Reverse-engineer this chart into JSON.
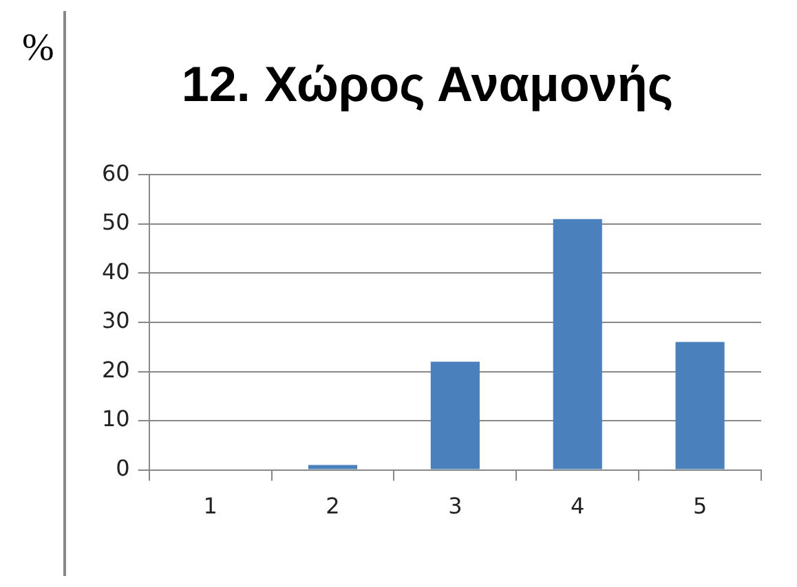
{
  "chart_data": {
    "type": "bar",
    "title": "12. Χώρος Αναμονής",
    "ylabel": "%",
    "categories": [
      "1",
      "2",
      "3",
      "4",
      "5"
    ],
    "values": [
      0,
      1,
      22,
      51,
      26
    ],
    "color": "#4a81bd",
    "ylim": [
      0,
      60
    ],
    "yticks": [
      0,
      10,
      20,
      30,
      40,
      50,
      60
    ],
    "grid": "y",
    "legend": false
  }
}
